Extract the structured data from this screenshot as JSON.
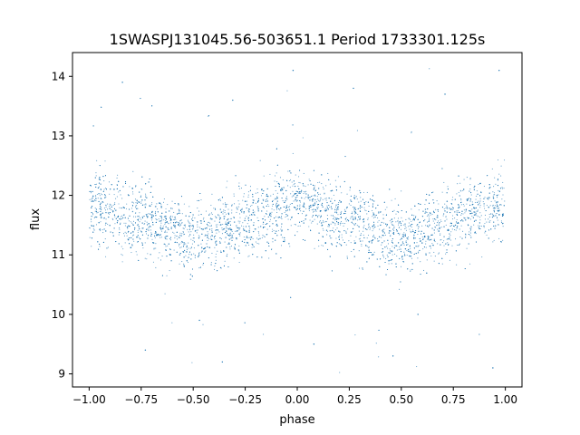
{
  "chart_data": {
    "type": "scatter",
    "title": "1SWASPJ131045.56-503651.1 Period 1733301.125s",
    "xlabel": "phase",
    "ylabel": "flux",
    "xlim": [
      -1.08,
      1.08
    ],
    "ylim": [
      8.78,
      14.4
    ],
    "x_ticks": [
      -1.0,
      -0.75,
      -0.5,
      -0.25,
      0.0,
      0.25,
      0.5,
      0.75,
      1.0
    ],
    "x_tick_labels": [
      "−1.00",
      "−0.75",
      "−0.50",
      "−0.25",
      "0.00",
      "0.25",
      "0.50",
      "0.75",
      "1.00"
    ],
    "y_ticks": [
      9,
      10,
      11,
      12,
      13,
      14
    ],
    "y_tick_labels": [
      "9",
      "10",
      "11",
      "12",
      "13",
      "14"
    ],
    "grid": false,
    "series": [
      {
        "color": "#1f77b4",
        "note_trend_profile": {
          "phase": [
            -1.0,
            -0.875,
            -0.75,
            -0.625,
            -0.5,
            -0.375,
            -0.25,
            -0.125,
            0.0,
            0.125,
            0.25,
            0.375,
            0.5,
            0.625,
            0.75,
            0.875,
            1.0
          ],
          "median_flux": [
            11.82,
            11.72,
            11.6,
            11.45,
            11.32,
            11.38,
            11.55,
            11.72,
            11.85,
            11.72,
            11.58,
            11.45,
            11.32,
            11.42,
            11.58,
            11.75,
            11.82
          ],
          "spread_flux": 0.42
        },
        "points": [
          [
            -0.98,
            11.9
          ],
          [
            -0.95,
            12.3
          ],
          [
            -0.92,
            11.4
          ],
          [
            -0.88,
            12.1
          ],
          [
            -0.85,
            11.6
          ],
          [
            -0.81,
            12.0
          ],
          [
            -0.77,
            11.3
          ],
          [
            -0.73,
            11.8
          ],
          [
            -0.69,
            11.2
          ],
          [
            -0.65,
            11.7
          ],
          [
            -0.61,
            11.0
          ],
          [
            -0.57,
            11.5
          ],
          [
            -0.53,
            10.9
          ],
          [
            -0.49,
            11.4
          ],
          [
            -0.45,
            11.1
          ],
          [
            -0.41,
            11.6
          ],
          [
            -0.37,
            11.2
          ],
          [
            -0.33,
            11.7
          ],
          [
            -0.29,
            11.4
          ],
          [
            -0.25,
            11.9
          ],
          [
            -0.21,
            11.5
          ],
          [
            -0.17,
            12.1
          ],
          [
            -0.13,
            11.7
          ],
          [
            -0.09,
            12.2
          ],
          [
            -0.05,
            11.8
          ],
          [
            0.0,
            12.0
          ],
          [
            0.04,
            11.6
          ],
          [
            0.08,
            12.1
          ],
          [
            0.12,
            11.5
          ],
          [
            0.16,
            11.9
          ],
          [
            0.2,
            11.3
          ],
          [
            0.24,
            11.8
          ],
          [
            0.28,
            11.2
          ],
          [
            0.32,
            11.6
          ],
          [
            0.36,
            11.0
          ],
          [
            0.4,
            11.5
          ],
          [
            0.44,
            10.9
          ],
          [
            0.48,
            11.4
          ],
          [
            0.52,
            11.1
          ],
          [
            0.56,
            11.6
          ],
          [
            0.6,
            11.2
          ],
          [
            0.64,
            11.7
          ],
          [
            0.68,
            11.4
          ],
          [
            0.72,
            11.9
          ],
          [
            0.76,
            11.5
          ],
          [
            0.8,
            12.1
          ],
          [
            0.84,
            11.7
          ],
          [
            0.88,
            12.2
          ],
          [
            0.92,
            11.8
          ],
          [
            0.96,
            12.0
          ],
          [
            -0.84,
            13.9
          ],
          [
            -0.31,
            13.6
          ],
          [
            -0.02,
            14.1
          ],
          [
            0.27,
            13.8
          ],
          [
            0.71,
            13.7
          ],
          [
            0.97,
            14.1
          ],
          [
            -0.73,
            9.4
          ],
          [
            -0.36,
            9.2
          ],
          [
            0.08,
            9.5
          ],
          [
            0.46,
            9.3
          ],
          [
            0.94,
            9.1
          ],
          [
            -0.47,
            9.9
          ],
          [
            0.58,
            10.0
          ]
        ]
      }
    ]
  }
}
